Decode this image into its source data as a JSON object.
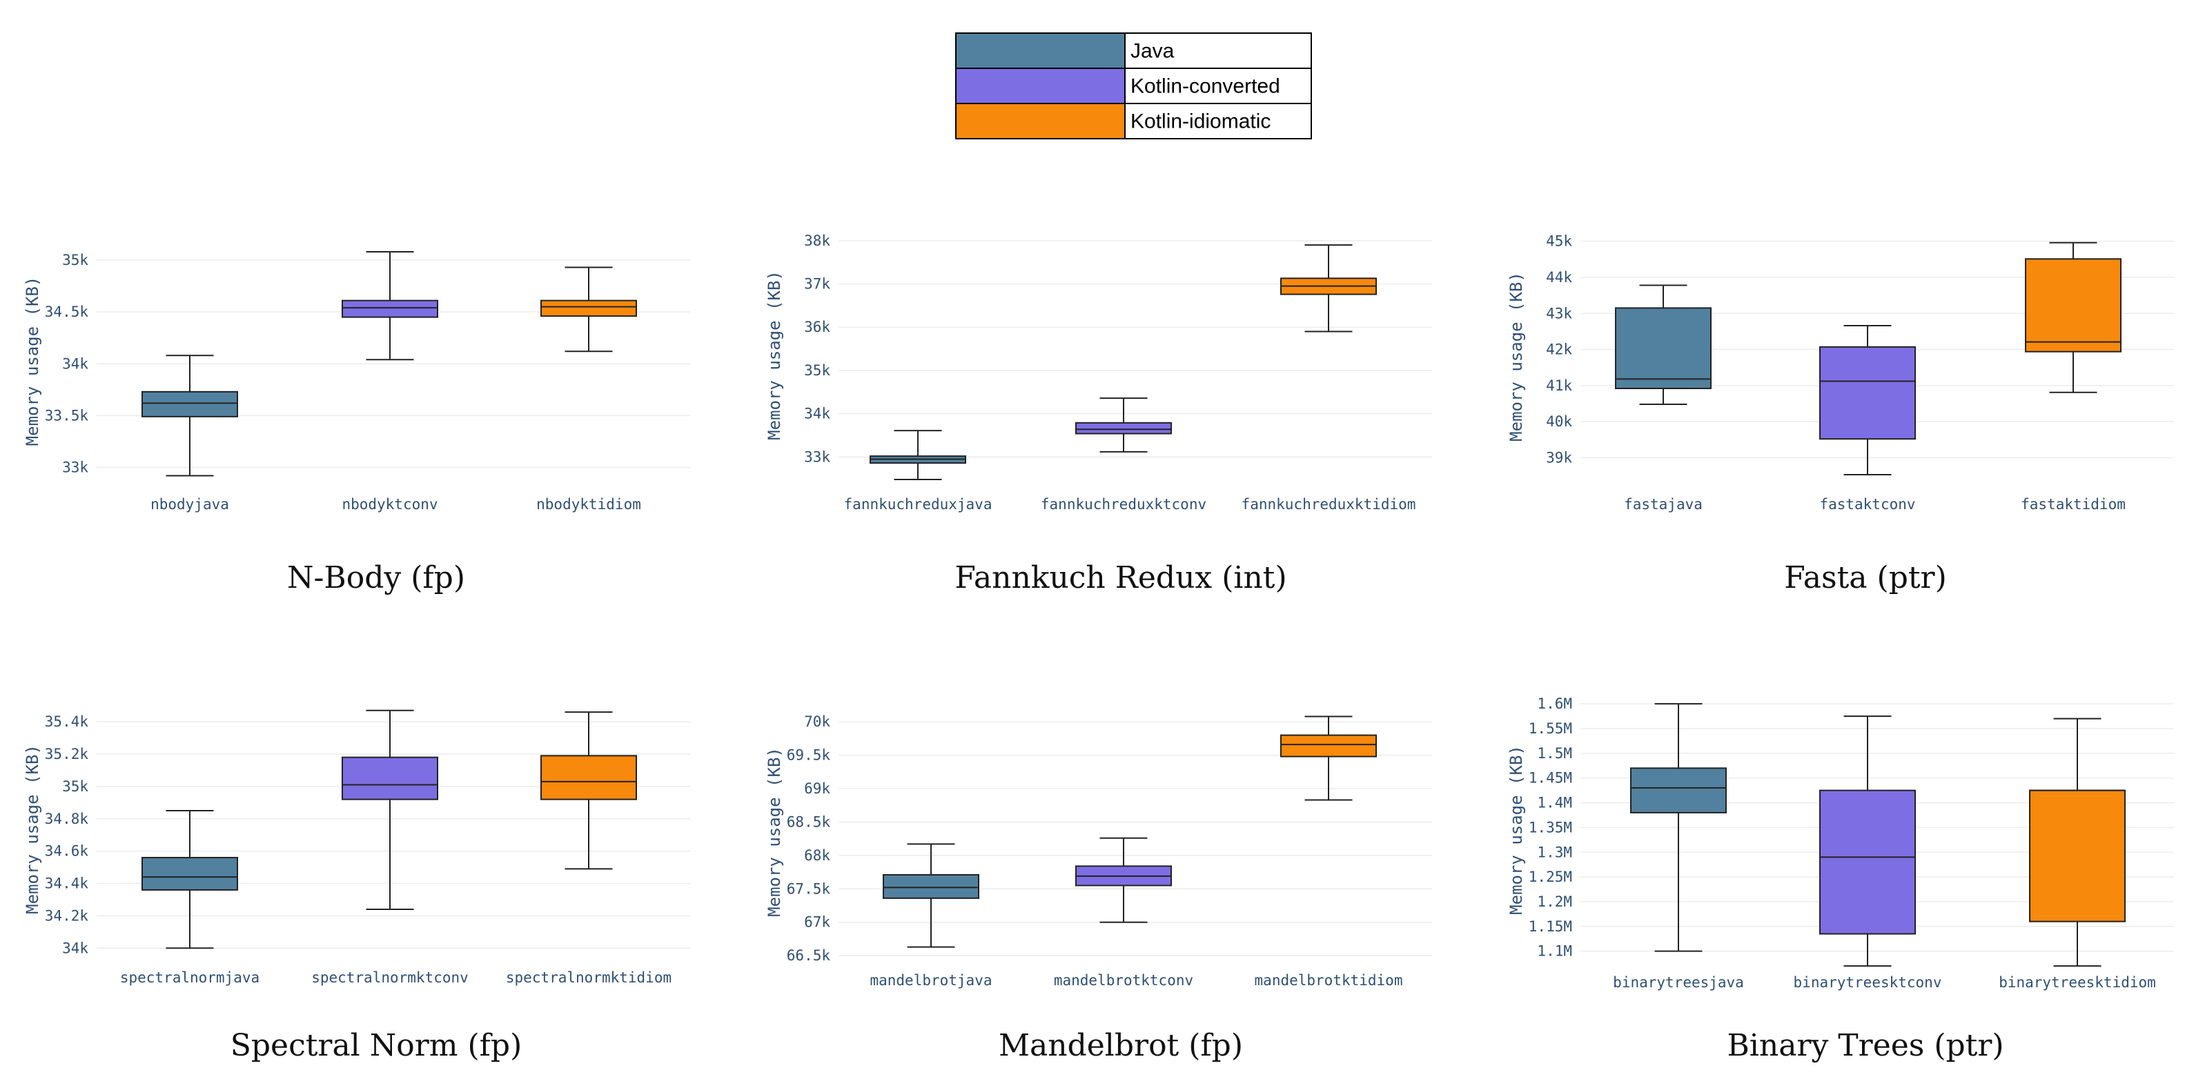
{
  "legend": {
    "items": [
      {
        "label": "Java",
        "color": "#52819f"
      },
      {
        "label": "Kotlin-converted",
        "color": "#7e6ee3"
      },
      {
        "label": "Kotlin-idiomatic",
        "color": "#f7890d"
      }
    ]
  },
  "chart_data": [
    {
      "type": "box",
      "title": "N-Body (fp)",
      "ylabel": "Memory usage (KB)",
      "ylim": [
        32850,
        35200
      ],
      "yticks": [
        {
          "v": 33000,
          "label": "33k"
        },
        {
          "v": 33500,
          "label": "33.5k"
        },
        {
          "v": 34000,
          "label": "34k"
        },
        {
          "v": 34500,
          "label": "34.5k"
        },
        {
          "v": 35000,
          "label": "35k"
        }
      ],
      "boxes": [
        {
          "category": "nbodyjava",
          "series": "Java",
          "min": 32920,
          "q1": 33490,
          "median": 33620,
          "q3": 33730,
          "max": 34080
        },
        {
          "category": "nbodyktconv",
          "series": "Kotlin-converted",
          "min": 34040,
          "q1": 34450,
          "median": 34540,
          "q3": 34610,
          "max": 35080
        },
        {
          "category": "nbodyktidiom",
          "series": "Kotlin-idiomatic",
          "min": 34120,
          "q1": 34460,
          "median": 34550,
          "q3": 34610,
          "max": 34930
        }
      ]
    },
    {
      "type": "box",
      "title": "Fannkuch Redux (int)",
      "ylabel": "Memory usage (KB)",
      "ylim": [
        32400,
        38300
      ],
      "yticks": [
        {
          "v": 33000,
          "label": "33k"
        },
        {
          "v": 34000,
          "label": "34k"
        },
        {
          "v": 35000,
          "label": "35k"
        },
        {
          "v": 36000,
          "label": "36k"
        },
        {
          "v": 37000,
          "label": "37k"
        },
        {
          "v": 38000,
          "label": "38k"
        }
      ],
      "boxes": [
        {
          "category": "fannkuchreduxjava",
          "series": "Java",
          "min": 32480,
          "q1": 32860,
          "median": 32950,
          "q3": 33020,
          "max": 33610
        },
        {
          "category": "fannkuchreduxktconv",
          "series": "Kotlin-converted",
          "min": 33120,
          "q1": 33540,
          "median": 33640,
          "q3": 33790,
          "max": 34360
        },
        {
          "category": "fannkuchreduxktidiom",
          "series": "Kotlin-idiomatic",
          "min": 35900,
          "q1": 36760,
          "median": 36950,
          "q3": 37130,
          "max": 37900
        }
      ]
    },
    {
      "type": "box",
      "title": "Fasta (ptr)",
      "ylabel": "Memory usage (KB)",
      "ylim": [
        38300,
        45300
      ],
      "yticks": [
        {
          "v": 39000,
          "label": "39k"
        },
        {
          "v": 40000,
          "label": "40k"
        },
        {
          "v": 41000,
          "label": "41k"
        },
        {
          "v": 42000,
          "label": "42k"
        },
        {
          "v": 43000,
          "label": "43k"
        },
        {
          "v": 44000,
          "label": "44k"
        },
        {
          "v": 45000,
          "label": "45k"
        }
      ],
      "boxes": [
        {
          "category": "fastajava",
          "series": "Java",
          "min": 40480,
          "q1": 40920,
          "median": 41180,
          "q3": 43150,
          "max": 43780
        },
        {
          "category": "fastaktconv",
          "series": "Kotlin-converted",
          "min": 38530,
          "q1": 39520,
          "median": 41120,
          "q3": 42070,
          "max": 42660
        },
        {
          "category": "fastaktidiom",
          "series": "Kotlin-idiomatic",
          "min": 40810,
          "q1": 41940,
          "median": 42210,
          "q3": 44510,
          "max": 44960
        }
      ]
    },
    {
      "type": "box",
      "title": "Spectral Norm (fp)",
      "ylabel": "Memory usage (KB)",
      "ylim": [
        33950,
        35520
      ],
      "yticks": [
        {
          "v": 34000,
          "label": "34k"
        },
        {
          "v": 34200,
          "label": "34.2k"
        },
        {
          "v": 34400,
          "label": "34.4k"
        },
        {
          "v": 34600,
          "label": "34.6k"
        },
        {
          "v": 34800,
          "label": "34.8k"
        },
        {
          "v": 35000,
          "label": "35k"
        },
        {
          "v": 35200,
          "label": "35.2k"
        },
        {
          "v": 35400,
          "label": "35.4k"
        }
      ],
      "boxes": [
        {
          "category": "spectralnormjava",
          "series": "Java",
          "min": 34000,
          "q1": 34360,
          "median": 34440,
          "q3": 34560,
          "max": 34850
        },
        {
          "category": "spectralnormktconv",
          "series": "Kotlin-converted",
          "min": 34240,
          "q1": 34920,
          "median": 35010,
          "q3": 35180,
          "max": 35470
        },
        {
          "category": "spectralnormktidiom",
          "series": "Kotlin-idiomatic",
          "min": 34490,
          "q1": 34920,
          "median": 35030,
          "q3": 35190,
          "max": 35460
        }
      ]
    },
    {
      "type": "box",
      "title": "Mandelbrot (fp)",
      "ylabel": "Memory usage (KB)",
      "ylim": [
        66450,
        70250
      ],
      "yticks": [
        {
          "v": 66500,
          "label": "66.5k"
        },
        {
          "v": 67000,
          "label": "67k"
        },
        {
          "v": 67500,
          "label": "67.5k"
        },
        {
          "v": 68000,
          "label": "68k"
        },
        {
          "v": 68500,
          "label": "68.5k"
        },
        {
          "v": 69000,
          "label": "69k"
        },
        {
          "v": 69500,
          "label": "69.5k"
        },
        {
          "v": 70000,
          "label": "70k"
        }
      ],
      "boxes": [
        {
          "category": "mandelbrotjava",
          "series": "Java",
          "min": 66630,
          "q1": 67360,
          "median": 67520,
          "q3": 67710,
          "max": 68170
        },
        {
          "category": "mandelbrotktconv",
          "series": "Kotlin-converted",
          "min": 67000,
          "q1": 67550,
          "median": 67690,
          "q3": 67840,
          "max": 68260
        },
        {
          "category": "mandelbrotktidiom",
          "series": "Kotlin-idiomatic",
          "min": 68830,
          "q1": 69480,
          "median": 69660,
          "q3": 69800,
          "max": 70080
        }
      ]
    },
    {
      "type": "box",
      "title": "Binary Trees (ptr)",
      "ylabel": "Memory usage (KB)",
      "ylim": [
        1080000,
        1610000
      ],
      "yticks": [
        {
          "v": 1100000,
          "label": "1.1M"
        },
        {
          "v": 1150000,
          "label": "1.15M"
        },
        {
          "v": 1200000,
          "label": "1.2M"
        },
        {
          "v": 1250000,
          "label": "1.25M"
        },
        {
          "v": 1300000,
          "label": "1.3M"
        },
        {
          "v": 1350000,
          "label": "1.35M"
        },
        {
          "v": 1400000,
          "label": "1.4M"
        },
        {
          "v": 1450000,
          "label": "1.45M"
        },
        {
          "v": 1500000,
          "label": "1.5M"
        },
        {
          "v": 1550000,
          "label": "1.55M"
        },
        {
          "v": 1600000,
          "label": "1.6M"
        }
      ],
      "boxes": [
        {
          "category": "binarytreesjava",
          "series": "Java",
          "min": 1100000,
          "q1": 1380000,
          "median": 1430000,
          "q3": 1470000,
          "max": 1600000
        },
        {
          "category": "binarytreesktconv",
          "series": "Kotlin-converted",
          "min": 1070000,
          "q1": 1135000,
          "median": 1290000,
          "q3": 1425000,
          "max": 1575000
        },
        {
          "category": "binarytreesktidiom",
          "series": "Kotlin-idiomatic",
          "min": 1070000,
          "q1": 1160000,
          "median": 1425000,
          "q3": 1425000,
          "max": 1570000
        }
      ]
    }
  ]
}
